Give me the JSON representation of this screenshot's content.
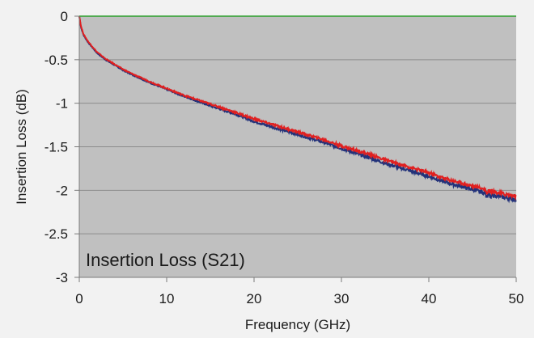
{
  "chart_data": {
    "type": "line",
    "title": "",
    "xlabel": "Frequency (GHz)",
    "ylabel": "Insertion Loss (dB)",
    "annotation": "Insertion Loss (S21)",
    "xlim": [
      0,
      50
    ],
    "ylim": [
      -3,
      0
    ],
    "xticks": [
      0,
      10,
      20,
      30,
      40,
      50
    ],
    "yticks": [
      0,
      -0.5,
      -1,
      -1.5,
      -2,
      -2.5,
      -3
    ],
    "xtick_labels": [
      "0",
      "10",
      "20",
      "30",
      "40",
      "50"
    ],
    "ytick_labels": [
      "0",
      "-0.5",
      "-1",
      "-1.5",
      "-2",
      "-2.5",
      "-3"
    ],
    "grid": "horizontal",
    "legend": "none",
    "plot_background": "#c0c0c0",
    "gridline_color": "#8c8c8c",
    "series": [
      {
        "color": "#22327a",
        "x": [
          0,
          0.2,
          0.5,
          1,
          2,
          3,
          4,
          5,
          6,
          8,
          10,
          12,
          15,
          18,
          20,
          22,
          25,
          28,
          30,
          33,
          35,
          38,
          40,
          42,
          45,
          47,
          48,
          50
        ],
        "y": [
          0,
          -0.13,
          -0.22,
          -0.3,
          -0.42,
          -0.5,
          -0.56,
          -0.62,
          -0.67,
          -0.76,
          -0.84,
          -0.92,
          -1.03,
          -1.13,
          -1.21,
          -1.27,
          -1.36,
          -1.45,
          -1.52,
          -1.62,
          -1.69,
          -1.78,
          -1.84,
          -1.91,
          -1.99,
          -2.05,
          -2.07,
          -2.11
        ]
      },
      {
        "color": "#e02020",
        "x": [
          0,
          0.2,
          0.5,
          1,
          2,
          3,
          4,
          5,
          6,
          8,
          10,
          12,
          15,
          18,
          20,
          22,
          25,
          28,
          30,
          33,
          35,
          38,
          40,
          42,
          45,
          47,
          48,
          50
        ],
        "y": [
          0,
          -0.12,
          -0.21,
          -0.29,
          -0.41,
          -0.49,
          -0.55,
          -0.61,
          -0.66,
          -0.75,
          -0.83,
          -0.91,
          -1.01,
          -1.11,
          -1.18,
          -1.24,
          -1.33,
          -1.42,
          -1.49,
          -1.58,
          -1.65,
          -1.74,
          -1.8,
          -1.87,
          -1.95,
          -2.0,
          -2.03,
          -2.07
        ]
      },
      {
        "color": "#2ca02c",
        "x": [
          0,
          50
        ],
        "y": [
          0,
          0
        ]
      }
    ]
  }
}
